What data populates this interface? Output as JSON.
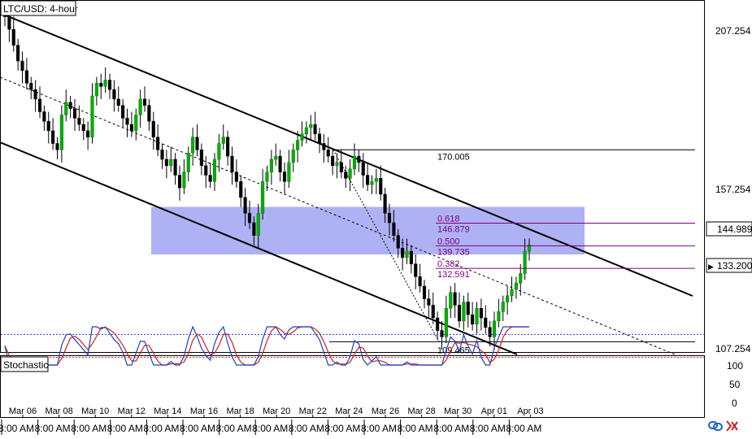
{
  "chart_data": {
    "type": "candlestick",
    "title": "LTC/USD: 4-hour",
    "indicator_title": "Stochastic",
    "y_ticks": [
      "207.254",
      "157.254",
      "107.254"
    ],
    "price_tags": [
      {
        "label": "144.989",
        "value": 144.989,
        "arrow": ""
      },
      {
        "label": "133.200",
        "value": 133.2,
        "arrow": "▶"
      }
    ],
    "stoch_ticks": [
      "100",
      "50",
      "0"
    ],
    "stoch_levels": {
      "upper": 80,
      "lower": 20,
      "upper_color": "#3333cc",
      "lower_color": "#cc2222"
    },
    "x_dates": [
      "Mar 06",
      "Mar 08",
      "Mar 10",
      "Mar 12",
      "Mar 14",
      "Mar 16",
      "Mar 18",
      "Mar 20",
      "Mar 22",
      "Mar 24",
      "Mar 26",
      "Mar 28",
      "Mar 30",
      "Apr 01",
      "Apr 03"
    ],
    "x_time_label": "8:00 AM",
    "fib": {
      "high_label": "170.005",
      "low_label": "109.465",
      "high": 170.005,
      "low": 109.465,
      "levels": [
        {
          "ratio_label": "0.618",
          "price_label": "146.879",
          "value": 146.879
        },
        {
          "ratio_label": "0.500",
          "price_label": "139.735",
          "value": 139.735
        },
        {
          "ratio_label": "0.382",
          "price_label": "132.591",
          "value": 132.591
        }
      ],
      "color": "#800080"
    },
    "zone": {
      "from": 137,
      "to": 152,
      "color": "#a0a4f2"
    },
    "channel": {
      "color": "#000000"
    },
    "close_prices": [
      212,
      208,
      203,
      198,
      195,
      191,
      189,
      186,
      182,
      179,
      176,
      172,
      170,
      181,
      185,
      183,
      180,
      178,
      176,
      174,
      187,
      191,
      190,
      192,
      189,
      186,
      184,
      180,
      178,
      176,
      181,
      186,
      184,
      179,
      174,
      170,
      167,
      165,
      167,
      162,
      158,
      163,
      169,
      174,
      170,
      165,
      162,
      160,
      167,
      172,
      174,
      168,
      163,
      160,
      155,
      150,
      147,
      143,
      150,
      160,
      163,
      167,
      168,
      163,
      160,
      166,
      170,
      173,
      175,
      177,
      178,
      175,
      172,
      170,
      168,
      165,
      166,
      163,
      161,
      164,
      168,
      166,
      162,
      159,
      160,
      161,
      156,
      150,
      147,
      143,
      139,
      136,
      138,
      134,
      130,
      127,
      123,
      121,
      117,
      113,
      111,
      120,
      125,
      121,
      116,
      122,
      118,
      115,
      120,
      117,
      114,
      111,
      116,
      119,
      122,
      124,
      126,
      128,
      131,
      138,
      140
    ]
  },
  "toolbar": {
    "link_icon": "link-icon",
    "close_icon": "close-icon"
  }
}
